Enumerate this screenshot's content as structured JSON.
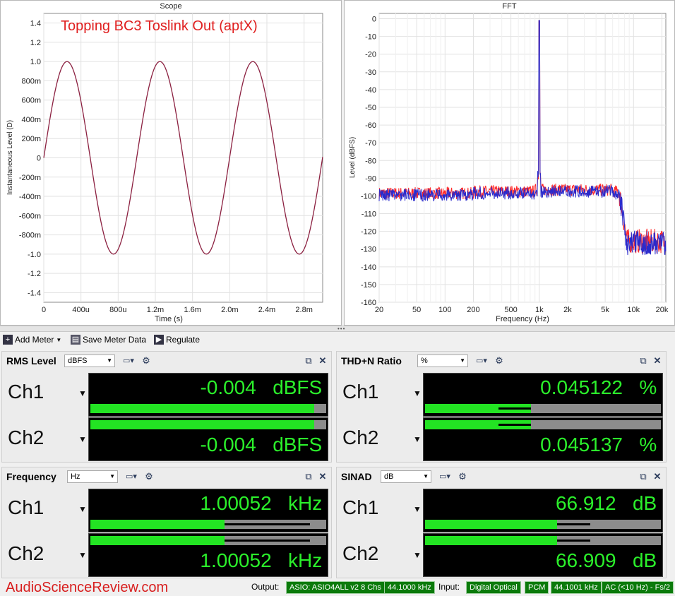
{
  "scope": {
    "title": "Scope",
    "annotation": "Topping BC3 Toslink Out (aptX)",
    "ylabel": "Instantaneous Level (D)",
    "xlabel": "Time (s)",
    "yticks": [
      "1.4",
      "1.2",
      "1.0",
      "800m",
      "600m",
      "400m",
      "200m",
      "0",
      "-200m",
      "-400m",
      "-600m",
      "-800m",
      "-1.0",
      "-1.2",
      "-1.4"
    ],
    "xticks": [
      "0",
      "400u",
      "800u",
      "1.2m",
      "1.6m",
      "2.0m",
      "2.4m",
      "2.8m"
    ],
    "trace_color": "#8b2040"
  },
  "fft": {
    "title": "FFT",
    "ylabel": "Level (dBFS)",
    "xlabel": "Frequency (Hz)",
    "yticks": [
      "0",
      "-10",
      "-20",
      "-30",
      "-40",
      "-50",
      "-60",
      "-70",
      "-80",
      "-90",
      "-100",
      "-110",
      "-120",
      "-130",
      "-140",
      "-150",
      "-160"
    ],
    "xticks": [
      "20",
      "50",
      "100",
      "200",
      "500",
      "1k",
      "2k",
      "5k",
      "10k",
      "20k"
    ],
    "series_colors": [
      "#ff2a2a",
      "#2a2acc"
    ]
  },
  "toolbar": {
    "add_meter": "Add Meter",
    "save_meter_data": "Save Meter Data",
    "regulate": "Regulate"
  },
  "meters": {
    "rms": {
      "title": "RMS Level",
      "unit": "dBFS",
      "ch1_label": "Ch1",
      "ch2_label": "Ch2",
      "ch1_value": "-0.004",
      "ch2_value": "-0.004",
      "ch1_unit": "dBFS",
      "ch2_unit": "dBFS",
      "ch1_level": 0.95,
      "ch2_level": 0.95
    },
    "thd": {
      "title": "THD+N Ratio",
      "unit": "%",
      "ch1_label": "Ch1",
      "ch2_label": "Ch2",
      "ch1_value": "0.045122",
      "ch2_value": "0.045137",
      "ch1_unit": "%",
      "ch2_unit": "%",
      "ch1_level": 0.45,
      "ch2_level": 0.45
    },
    "freq": {
      "title": "Frequency",
      "unit": "Hz",
      "ch1_label": "Ch1",
      "ch2_label": "Ch2",
      "ch1_value": "1.00052",
      "ch2_value": "1.00052",
      "ch1_unit": "kHz",
      "ch2_unit": "kHz",
      "ch1_level": 0.57,
      "ch2_level": 0.57
    },
    "sinad": {
      "title": "SINAD",
      "unit": "dB",
      "ch1_label": "Ch1",
      "ch2_label": "Ch2",
      "ch1_value": "66.912",
      "ch2_value": "66.909",
      "ch1_unit": "dB",
      "ch2_unit": "dB",
      "ch1_level": 0.56,
      "ch2_level": 0.56
    }
  },
  "status": {
    "brand": "AudioScienceReview.com",
    "output_label": "Output:",
    "output_device": "ASIO: ASIO4ALL v2 8 Chs",
    "output_rate": "44.1000 kHz",
    "input_label": "Input:",
    "input_device": "Digital Optical",
    "input_format": "PCM",
    "input_rate": "44.1001 kHz",
    "input_coupling": "AC (<10 Hz) - Fs/2"
  }
}
